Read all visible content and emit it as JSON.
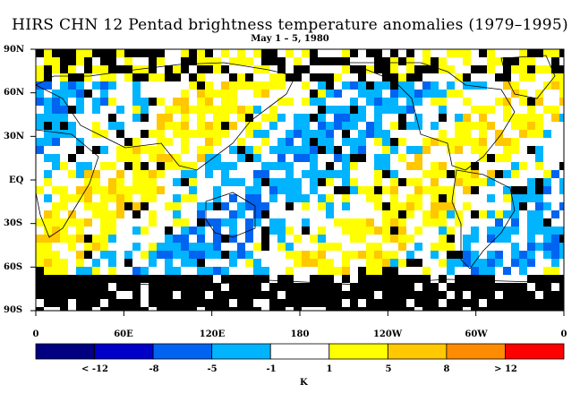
{
  "title": "HIRS CHN 12 Pentad brightness temperature anomalies (1979–1995)",
  "subtitle": "May 1 – 5, 1980",
  "lat_labels": [
    "90N",
    "60N",
    "30N",
    "EQ",
    "30S",
    "60S",
    "90S"
  ],
  "lon_labels": [
    "0",
    "60E",
    "120E",
    "180",
    "120W",
    "60W",
    "0"
  ],
  "colorbar": {
    "colors": [
      "#000080",
      "#0000c8",
      "#0064f0",
      "#00b4ff",
      "#ffffff",
      "#ffff00",
      "#ffc800",
      "#ff8c00",
      "#ff0000"
    ],
    "labels": [
      "< -12",
      "-8",
      "-5",
      "-1",
      "1",
      "5",
      "8",
      "> 12"
    ],
    "unit": "K"
  },
  "map_colors": {
    "missing": "#000000",
    "neg_strong": "#0064f0",
    "neg": "#00b4ff",
    "neutral": "#ffffff",
    "pos": "#ffff00",
    "pos_strong": "#ffc800"
  }
}
